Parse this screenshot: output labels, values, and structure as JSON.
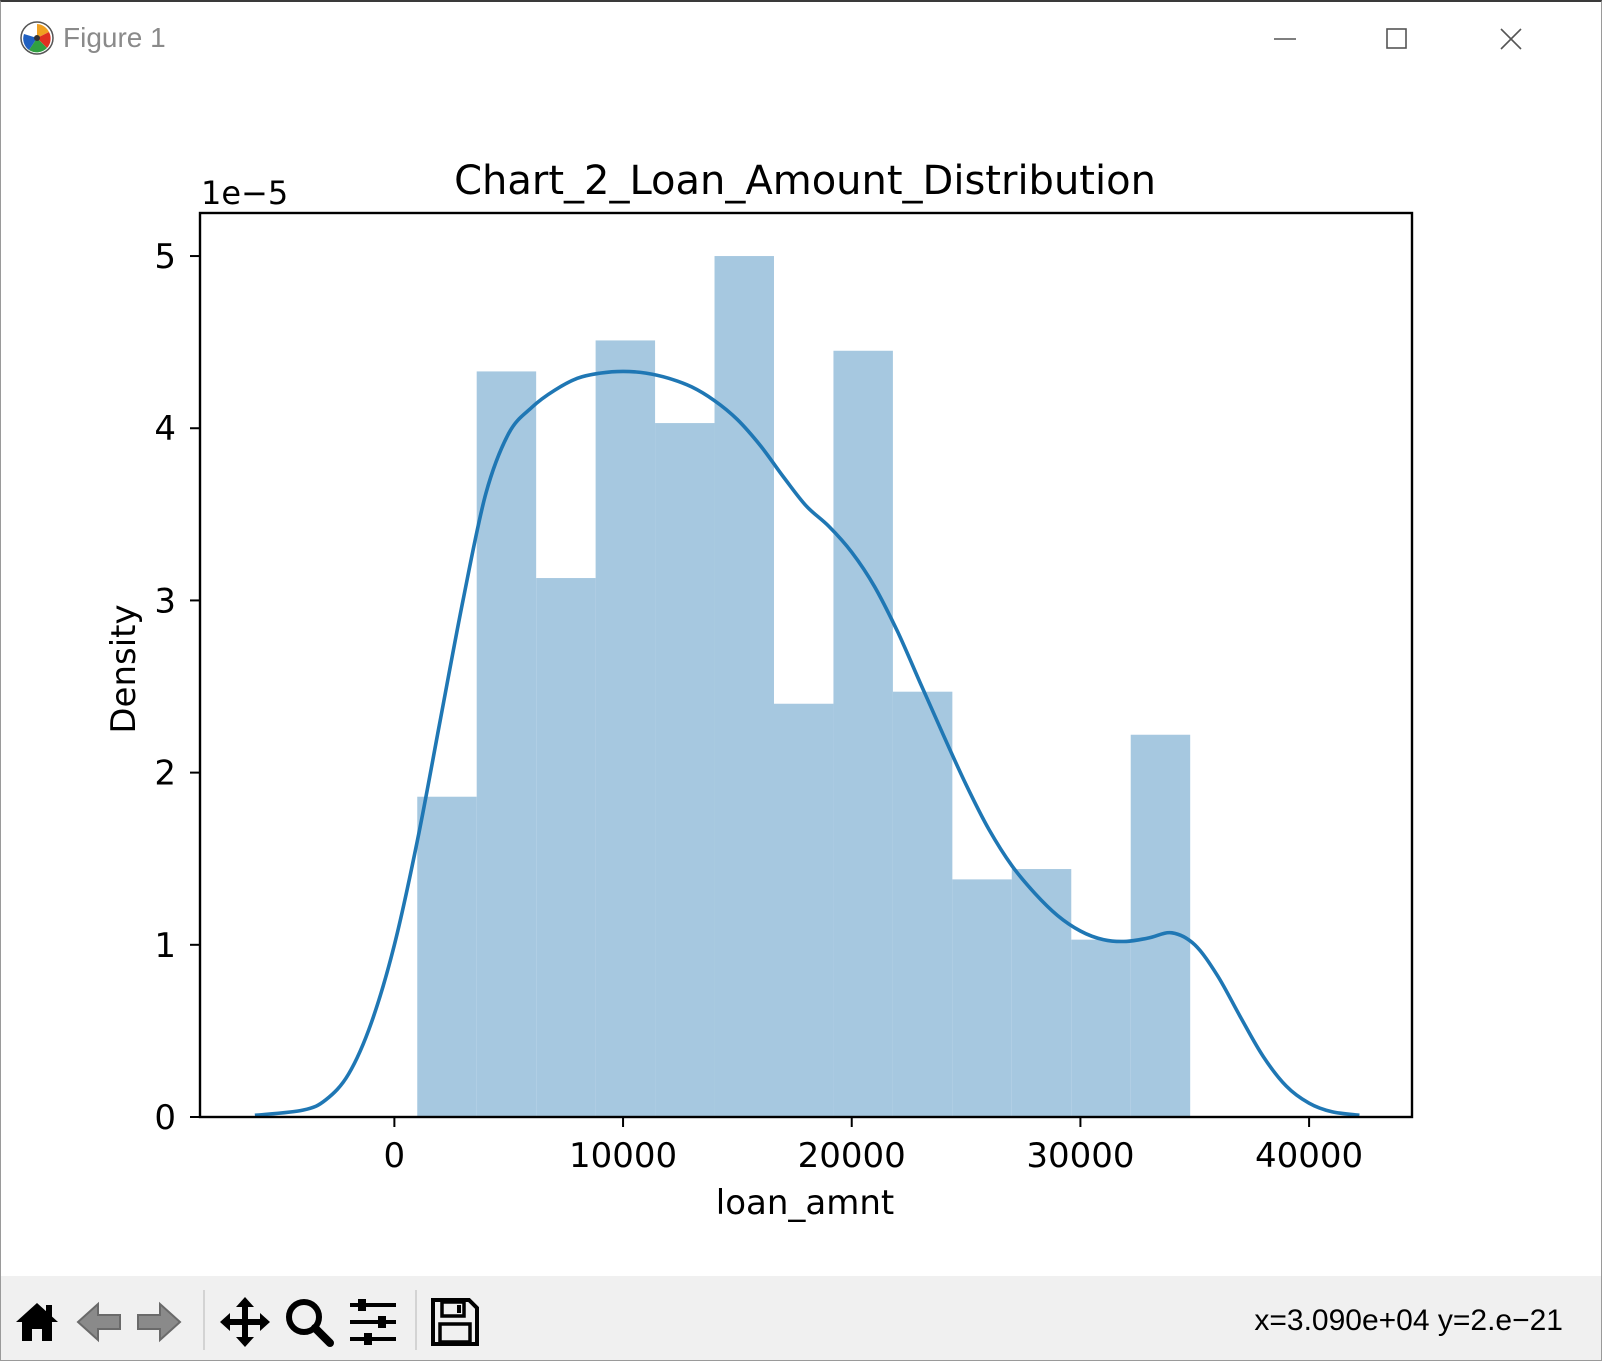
{
  "window": {
    "title": "Figure 1",
    "icons": {
      "app": "matplotlib-logo-icon",
      "minimize": "minimize-icon",
      "maximize": "maximize-icon",
      "close": "close-icon"
    }
  },
  "toolbar": {
    "icons": [
      "home-icon",
      "back-arrow-icon",
      "forward-arrow-icon",
      "pan-move-icon",
      "zoom-magnifier-icon",
      "configure-sliders-icon",
      "save-floppy-icon"
    ],
    "coords": "x=3.090e+04 y=2.e−21"
  },
  "chart_data": {
    "type": "bar",
    "title": "Chart_2_Loan_Amount_Distribution",
    "xlabel": "loan_amnt",
    "ylabel": "Density",
    "y_offset_label": "1e−5",
    "y_scale": 1e-05,
    "xlim": [
      -8500,
      44500
    ],
    "ylim": [
      0,
      5.25
    ],
    "xticks": [
      0,
      10000,
      20000,
      30000,
      40000
    ],
    "xtick_labels": [
      "0",
      "10000",
      "20000",
      "30000",
      "40000"
    ],
    "yticks": [
      0,
      1,
      2,
      3,
      4,
      5
    ],
    "ytick_labels": [
      "0",
      "1",
      "2",
      "3",
      "4",
      "5"
    ],
    "grid": false,
    "histogram": {
      "color": "#a6c8e0",
      "bins": [
        {
          "x0": 1000,
          "x1": 3600,
          "density": 1.86
        },
        {
          "x0": 3600,
          "x1": 6200,
          "density": 4.33
        },
        {
          "x0": 6200,
          "x1": 8800,
          "density": 3.13
        },
        {
          "x0": 8800,
          "x1": 11400,
          "density": 4.51
        },
        {
          "x0": 11400,
          "x1": 14000,
          "density": 4.03
        },
        {
          "x0": 14000,
          "x1": 16600,
          "density": 5.0
        },
        {
          "x0": 16600,
          "x1": 19200,
          "density": 2.4
        },
        {
          "x0": 19200,
          "x1": 21800,
          "density": 4.45
        },
        {
          "x0": 21800,
          "x1": 24400,
          "density": 2.47
        },
        {
          "x0": 24400,
          "x1": 27000,
          "density": 1.38
        },
        {
          "x0": 27000,
          "x1": 29600,
          "density": 1.44
        },
        {
          "x0": 29600,
          "x1": 32200,
          "density": 1.03
        },
        {
          "x0": 32200,
          "x1": 34800,
          "density": 2.22
        }
      ]
    },
    "kde": {
      "color": "#1f77b4",
      "points": [
        [
          -6100,
          0.01
        ],
        [
          -4000,
          0.04
        ],
        [
          -3000,
          0.1
        ],
        [
          -2000,
          0.25
        ],
        [
          -1000,
          0.55
        ],
        [
          0,
          1.0
        ],
        [
          1000,
          1.6
        ],
        [
          2000,
          2.3
        ],
        [
          3000,
          3.0
        ],
        [
          4000,
          3.62
        ],
        [
          5000,
          3.97
        ],
        [
          6000,
          4.12
        ],
        [
          7000,
          4.22
        ],
        [
          8000,
          4.29
        ],
        [
          9000,
          4.32
        ],
        [
          10000,
          4.33
        ],
        [
          11000,
          4.32
        ],
        [
          12000,
          4.29
        ],
        [
          13000,
          4.24
        ],
        [
          14000,
          4.16
        ],
        [
          15000,
          4.05
        ],
        [
          16000,
          3.9
        ],
        [
          17000,
          3.72
        ],
        [
          18000,
          3.55
        ],
        [
          19000,
          3.43
        ],
        [
          20000,
          3.28
        ],
        [
          21000,
          3.08
        ],
        [
          22000,
          2.82
        ],
        [
          23000,
          2.52
        ],
        [
          24000,
          2.22
        ],
        [
          25000,
          1.93
        ],
        [
          26000,
          1.67
        ],
        [
          27000,
          1.46
        ],
        [
          28000,
          1.3
        ],
        [
          29000,
          1.17
        ],
        [
          30000,
          1.08
        ],
        [
          31000,
          1.03
        ],
        [
          32000,
          1.02
        ],
        [
          33000,
          1.04
        ],
        [
          34000,
          1.07
        ],
        [
          35000,
          1.0
        ],
        [
          36000,
          0.82
        ],
        [
          37000,
          0.58
        ],
        [
          38000,
          0.35
        ],
        [
          39000,
          0.18
        ],
        [
          40000,
          0.08
        ],
        [
          41000,
          0.03
        ],
        [
          42200,
          0.01
        ]
      ]
    }
  }
}
